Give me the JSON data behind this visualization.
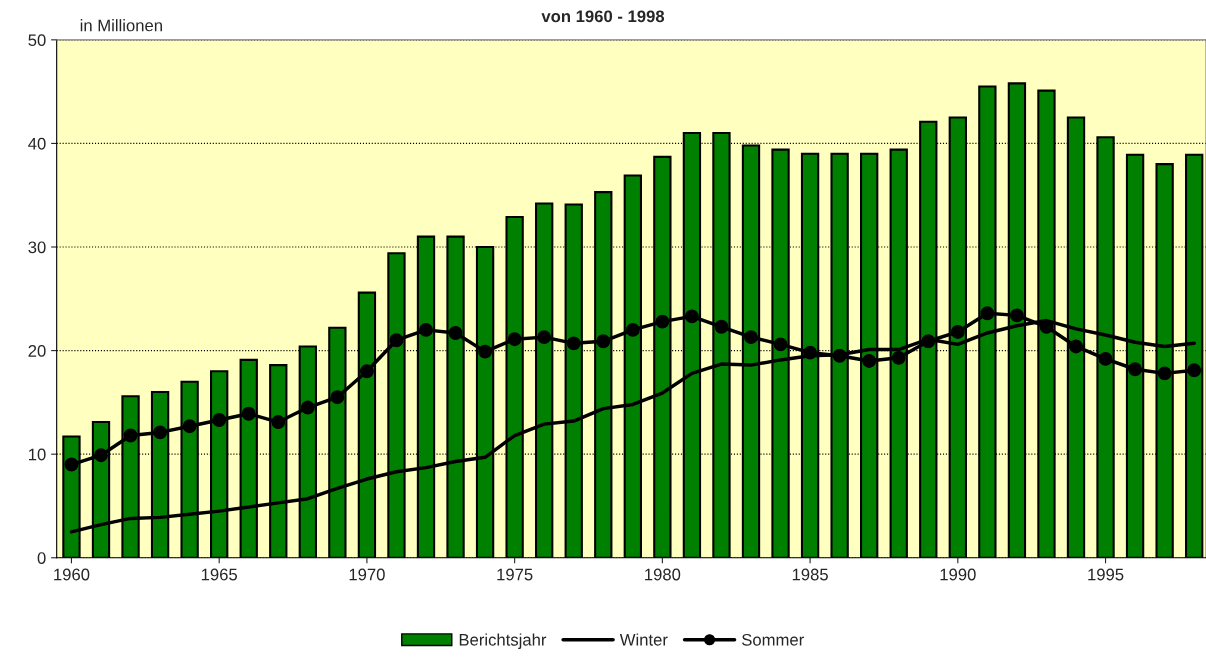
{
  "chart_data": {
    "type": "bar",
    "title": "von 1960 - 1998",
    "ylabel": "in Millionen",
    "x": [
      1960,
      1961,
      1962,
      1963,
      1964,
      1965,
      1966,
      1967,
      1968,
      1969,
      1970,
      1971,
      1972,
      1973,
      1974,
      1975,
      1976,
      1977,
      1978,
      1979,
      1980,
      1981,
      1982,
      1983,
      1984,
      1985,
      1986,
      1987,
      1988,
      1989,
      1990,
      1991,
      1992,
      1993,
      1994,
      1995,
      1996,
      1997,
      1998
    ],
    "series": [
      {
        "name": "Berichtsjahr",
        "color": "#008000",
        "values": [
          11.7,
          13.1,
          15.6,
          16.0,
          17.0,
          18.0,
          19.1,
          18.6,
          20.4,
          22.2,
          25.6,
          29.4,
          31.0,
          31.0,
          30.0,
          32.9,
          34.2,
          34.1,
          35.3,
          36.9,
          38.7,
          41.0,
          41.0,
          39.8,
          39.4,
          39.0,
          39.0,
          39.0,
          39.4,
          42.1,
          42.5,
          45.5,
          45.8,
          45.1,
          42.5,
          40.6,
          38.9,
          38.0,
          38.9
        ]
      },
      {
        "name": "Winter",
        "type": "line",
        "color": "#000000",
        "marker": "none",
        "values": [
          2.5,
          3.2,
          3.8,
          3.9,
          4.2,
          4.5,
          4.9,
          5.3,
          5.7,
          6.7,
          7.6,
          8.3,
          8.7,
          9.3,
          9.7,
          11.8,
          12.9,
          13.2,
          14.4,
          14.8,
          15.9,
          17.8,
          18.7,
          18.6,
          19.1,
          19.5,
          19.6,
          20.1,
          20.1,
          21.1,
          20.6,
          21.7,
          22.4,
          22.9,
          22.1,
          21.5,
          20.8,
          20.4,
          20.7
        ]
      },
      {
        "name": "Sommer",
        "type": "line",
        "color": "#000000",
        "marker": "circle",
        "values": [
          9.0,
          9.9,
          11.8,
          12.1,
          12.7,
          13.3,
          13.9,
          13.1,
          14.5,
          15.5,
          18.0,
          21.0,
          22.0,
          21.7,
          19.9,
          21.1,
          21.3,
          20.7,
          20.9,
          22.0,
          22.8,
          23.3,
          22.3,
          21.3,
          20.6,
          19.8,
          19.5,
          19.0,
          19.3,
          20.9,
          21.8,
          23.6,
          23.4,
          22.3,
          20.4,
          19.2,
          18.2,
          17.8,
          18.1
        ]
      }
    ],
    "xlim": [
      1959.5,
      1998.4
    ],
    "xticks": [
      1960,
      1965,
      1970,
      1975,
      1980,
      1985,
      1990,
      1995
    ],
    "ylim": [
      0,
      50
    ],
    "yticks": [
      0,
      10,
      20,
      30,
      40,
      50
    ],
    "grid": "y",
    "legend": "bottom"
  }
}
